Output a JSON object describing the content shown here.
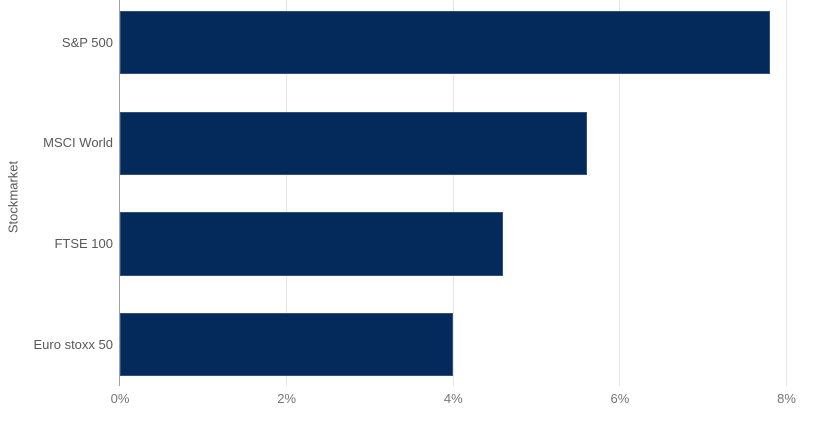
{
  "chart_data": {
    "type": "bar",
    "orientation": "horizontal",
    "title": "",
    "xlabel": "",
    "ylabel": "Stockmarket",
    "categories": [
      "S&P 500",
      "MSCI World",
      "FTSE 100",
      "Euro stoxx 50"
    ],
    "values": [
      7.8,
      5.6,
      4.6,
      4.0
    ],
    "value_unit": "%",
    "xlim": [
      0,
      8
    ],
    "x_tick_values": [
      0,
      2,
      4,
      6,
      8
    ],
    "x_tick_labels": [
      "0%",
      "2%",
      "4%",
      "6%",
      "8%"
    ],
    "grid": true,
    "legend": "none",
    "colors": {
      "bar": "#042a5c",
      "bar_edge": "#8c9bb9",
      "gridline": "#e6e6e6",
      "axis_line": "#a0a0a0",
      "tick_label_text": "#757575",
      "category_label_text": "#57585a",
      "axis_title_text": "#57585a",
      "background": "#ffffff"
    }
  }
}
